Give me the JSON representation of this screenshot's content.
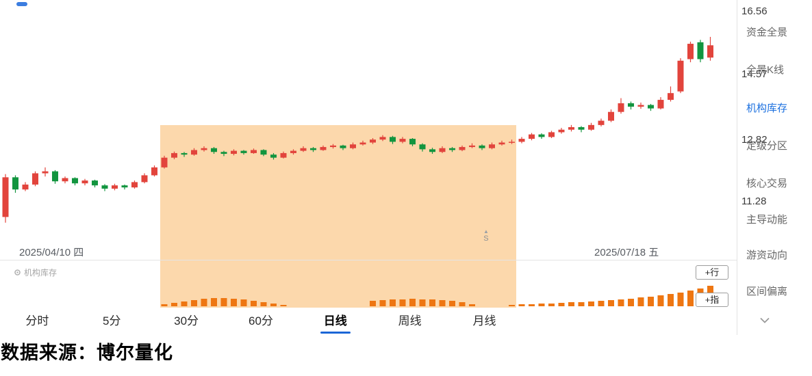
{
  "chart_data": {
    "type": "candlestick",
    "candle_format": "ohlc",
    "colors": {
      "up": "#e2443c",
      "down": "#12953f",
      "indicator_bar": "#ee7612",
      "highlight": "rgba(247,163,58,0.42)"
    },
    "y_axis": {
      "scale": "log",
      "labels": [
        "16.56",
        "14.57",
        "12.82",
        "11.28"
      ],
      "ylim": [
        10.6,
        16.56
      ]
    },
    "x_axis": {
      "start_label": "2025/04/10 四",
      "end_label": "2025/07/18 五"
    },
    "highlight_region": {
      "start_index": 16,
      "end_index": 51
    },
    "candles": [
      [
        10.85,
        11.88,
        10.72,
        11.8
      ],
      [
        11.8,
        11.85,
        11.42,
        11.5
      ],
      [
        11.5,
        11.68,
        11.46,
        11.62
      ],
      [
        11.62,
        11.95,
        11.58,
        11.9
      ],
      [
        11.9,
        12.05,
        11.82,
        11.95
      ],
      [
        11.95,
        11.98,
        11.64,
        11.7
      ],
      [
        11.7,
        11.82,
        11.65,
        11.78
      ],
      [
        11.78,
        11.8,
        11.6,
        11.65
      ],
      [
        11.65,
        11.76,
        11.6,
        11.72
      ],
      [
        11.72,
        11.74,
        11.55,
        11.6
      ],
      [
        11.6,
        11.63,
        11.46,
        11.52
      ],
      [
        11.52,
        11.64,
        11.48,
        11.6
      ],
      [
        11.6,
        11.62,
        11.5,
        11.55
      ],
      [
        11.55,
        11.72,
        11.52,
        11.68
      ],
      [
        11.68,
        11.9,
        11.65,
        11.85
      ],
      [
        11.85,
        12.1,
        11.82,
        12.05
      ],
      [
        12.05,
        12.35,
        12.02,
        12.3
      ],
      [
        12.3,
        12.46,
        12.26,
        12.42
      ],
      [
        12.42,
        12.45,
        12.32,
        12.38
      ],
      [
        12.38,
        12.55,
        12.35,
        12.5
      ],
      [
        12.5,
        12.6,
        12.46,
        12.55
      ],
      [
        12.55,
        12.58,
        12.4,
        12.45
      ],
      [
        12.45,
        12.48,
        12.34,
        12.4
      ],
      [
        12.4,
        12.52,
        12.36,
        12.48
      ],
      [
        12.48,
        12.5,
        12.38,
        12.42
      ],
      [
        12.42,
        12.54,
        12.4,
        12.5
      ],
      [
        12.5,
        12.52,
        12.34,
        12.38
      ],
      [
        12.38,
        12.42,
        12.25,
        12.3
      ],
      [
        12.3,
        12.46,
        12.28,
        12.42
      ],
      [
        12.42,
        12.52,
        12.38,
        12.48
      ],
      [
        12.48,
        12.6,
        12.45,
        12.55
      ],
      [
        12.55,
        12.58,
        12.45,
        12.5
      ],
      [
        12.5,
        12.62,
        12.48,
        12.58
      ],
      [
        12.58,
        12.66,
        12.54,
        12.62
      ],
      [
        12.62,
        12.64,
        12.5,
        12.55
      ],
      [
        12.55,
        12.7,
        12.52,
        12.65
      ],
      [
        12.65,
        12.75,
        12.62,
        12.7
      ],
      [
        12.7,
        12.82,
        12.66,
        12.78
      ],
      [
        12.78,
        12.9,
        12.74,
        12.85
      ],
      [
        12.85,
        12.88,
        12.66,
        12.72
      ],
      [
        12.72,
        12.85,
        12.68,
        12.8
      ],
      [
        12.8,
        12.82,
        12.6,
        12.65
      ],
      [
        12.65,
        12.68,
        12.46,
        12.52
      ],
      [
        12.52,
        12.56,
        12.4,
        12.45
      ],
      [
        12.45,
        12.6,
        12.42,
        12.55
      ],
      [
        12.55,
        12.58,
        12.45,
        12.5
      ],
      [
        12.5,
        12.62,
        12.47,
        12.58
      ],
      [
        12.58,
        12.68,
        12.55,
        12.62
      ],
      [
        12.62,
        12.65,
        12.5,
        12.55
      ],
      [
        12.55,
        12.7,
        12.52,
        12.65
      ],
      [
        12.65,
        12.75,
        12.62,
        12.7
      ],
      [
        12.7,
        12.78,
        12.66,
        12.72
      ],
      [
        12.72,
        12.85,
        12.68,
        12.8
      ],
      [
        12.8,
        12.96,
        12.76,
        12.92
      ],
      [
        12.92,
        12.95,
        12.8,
        12.85
      ],
      [
        12.85,
        13.02,
        12.82,
        12.98
      ],
      [
        12.98,
        13.1,
        12.94,
        13.05
      ],
      [
        13.05,
        13.18,
        13.0,
        13.12
      ],
      [
        13.12,
        13.15,
        12.98,
        13.05
      ],
      [
        13.05,
        13.24,
        13.02,
        13.18
      ],
      [
        13.18,
        13.36,
        13.14,
        13.3
      ],
      [
        13.3,
        13.62,
        13.26,
        13.55
      ],
      [
        13.55,
        13.95,
        13.5,
        13.8
      ],
      [
        13.8,
        13.85,
        13.62,
        13.7
      ],
      [
        13.7,
        13.82,
        13.64,
        13.75
      ],
      [
        13.75,
        13.78,
        13.58,
        13.65
      ],
      [
        13.65,
        13.98,
        13.62,
        13.9
      ],
      [
        13.9,
        14.3,
        13.85,
        14.1
      ],
      [
        14.15,
        15.18,
        14.1,
        15.1
      ],
      [
        15.15,
        15.72,
        15.05,
        15.65
      ],
      [
        15.7,
        15.78,
        15.05,
        15.15
      ],
      [
        15.2,
        15.88,
        15.1,
        15.6
      ]
    ],
    "indicator": {
      "name": "机构库存",
      "values": [
        0,
        0,
        0,
        0,
        0,
        0,
        0,
        0,
        0,
        0,
        0,
        0,
        0,
        0,
        0,
        0,
        3,
        5,
        7,
        9,
        11,
        12,
        12,
        11,
        10,
        8,
        6,
        4,
        2,
        0,
        0,
        0,
        0,
        0,
        0,
        0,
        0,
        8,
        9,
        10,
        10,
        11,
        10,
        10,
        9,
        8,
        6,
        3,
        0,
        0,
        0,
        2,
        3,
        3,
        4,
        4,
        5,
        6,
        6,
        7,
        8,
        9,
        10,
        11,
        13,
        14,
        16,
        18,
        20,
        23,
        26,
        30
      ]
    }
  },
  "price_axis": {
    "labels": [
      "16.56",
      "14.57",
      "12.82",
      "11.28"
    ]
  },
  "dates": {
    "start": "2025/04/10 四",
    "end": "2025/07/18 五"
  },
  "signal_marker": {
    "triangle": "▲",
    "text": "S"
  },
  "indicator_panel": {
    "label": "机构库存",
    "buttons": [
      "+行",
      "+指"
    ]
  },
  "tabs": [
    {
      "label": "分时",
      "active": false
    },
    {
      "label": "5分",
      "active": false
    },
    {
      "label": "30分",
      "active": false
    },
    {
      "label": "60分",
      "active": false
    },
    {
      "label": "日线",
      "active": true
    },
    {
      "label": "周线",
      "active": false
    },
    {
      "label": "月线",
      "active": false
    }
  ],
  "sidebar": {
    "items": [
      {
        "label": "资金全景",
        "active": false
      },
      {
        "label": "全景K线",
        "active": false
      },
      {
        "label": "机构库存",
        "active": true
      },
      {
        "label": "定级分区",
        "active": false
      },
      {
        "label": "核心交易",
        "active": false
      },
      {
        "label": "主导动能",
        "active": false
      },
      {
        "label": "游资动向",
        "active": false
      },
      {
        "label": "区间偏离",
        "active": false
      }
    ]
  },
  "footer": {
    "source_text": "数据来源：博尔量化"
  }
}
